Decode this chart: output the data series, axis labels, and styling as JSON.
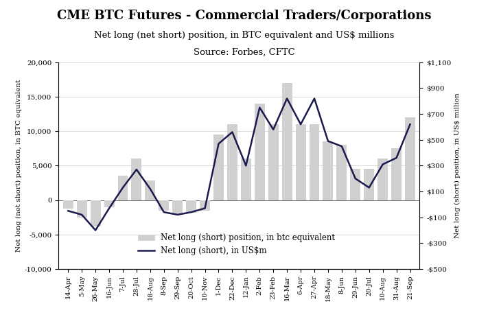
{
  "title": "CME BTC Futures - Commercial Traders/Corporations",
  "subtitle1": "Net long (net short) position, in BTC equivalent and US$ millions",
  "subtitle2": "Source: Forbes, CFTC",
  "ylabel_left": "Net long (net short) position, in BTC equivalent",
  "ylabel_right": "Net long (short) position, in US$ million",
  "legend_bar": "Net long (short) position, in btc equivalent",
  "legend_line": "Net long (short), in US$m",
  "xlabels": [
    "14-Apr",
    "5-May",
    "26-May",
    "16-Jun",
    "7-Jul",
    "28-Jul",
    "18-Aug",
    "8-Sep",
    "29-Sep",
    "20-Oct",
    "10-Nov",
    "1-Dec",
    "22-Dec",
    "12-Jan",
    "2-Feb",
    "23-Feb",
    "16-Mar",
    "6-Apr",
    "27-Apr",
    "18-May",
    "8-Jun",
    "29-Jun",
    "20-Jul",
    "10-Aug",
    "31-Aug",
    "21-Sep"
  ],
  "bar_values": [
    -1200,
    -2500,
    -3800,
    -1000,
    3500,
    6000,
    2800,
    -1500,
    -2000,
    -1800,
    -1500,
    9500,
    11000,
    6000,
    14000,
    11000,
    17000,
    11000,
    11000,
    8500,
    8000,
    4500,
    4500,
    6000,
    7500,
    12000
  ],
  "line_values": [
    -50,
    -80,
    -200,
    -30,
    130,
    270,
    120,
    -60,
    -80,
    -60,
    -30,
    470,
    560,
    300,
    750,
    580,
    820,
    620,
    820,
    490,
    450,
    200,
    130,
    310,
    360,
    620
  ],
  "ylim_left": [
    -10000,
    20000
  ],
  "ylim_right": [
    -500,
    1100
  ],
  "yticks_left": [
    -10000,
    -5000,
    0,
    5000,
    10000,
    15000,
    20000
  ],
  "ytick_labels_left": [
    "-10,000",
    "-5,000",
    "0",
    "5,000",
    "10,000",
    "15,000",
    "20,000"
  ],
  "yticks_right": [
    -500,
    -300,
    -100,
    100,
    300,
    500,
    700,
    900,
    1100
  ],
  "ytick_labels_right": [
    "-$500",
    "-$300",
    "-$100",
    "$100",
    "$300",
    "$500",
    "$700",
    "$900",
    "$1,100"
  ],
  "bar_color": "#d0d0d0",
  "line_color": "#1a1a4e",
  "background_color": "#ffffff",
  "title_fontsize": 13,
  "subtitle_fontsize": 9.5,
  "axis_label_fontsize": 7.5,
  "tick_fontsize": 7.5,
  "legend_fontsize": 8.5
}
